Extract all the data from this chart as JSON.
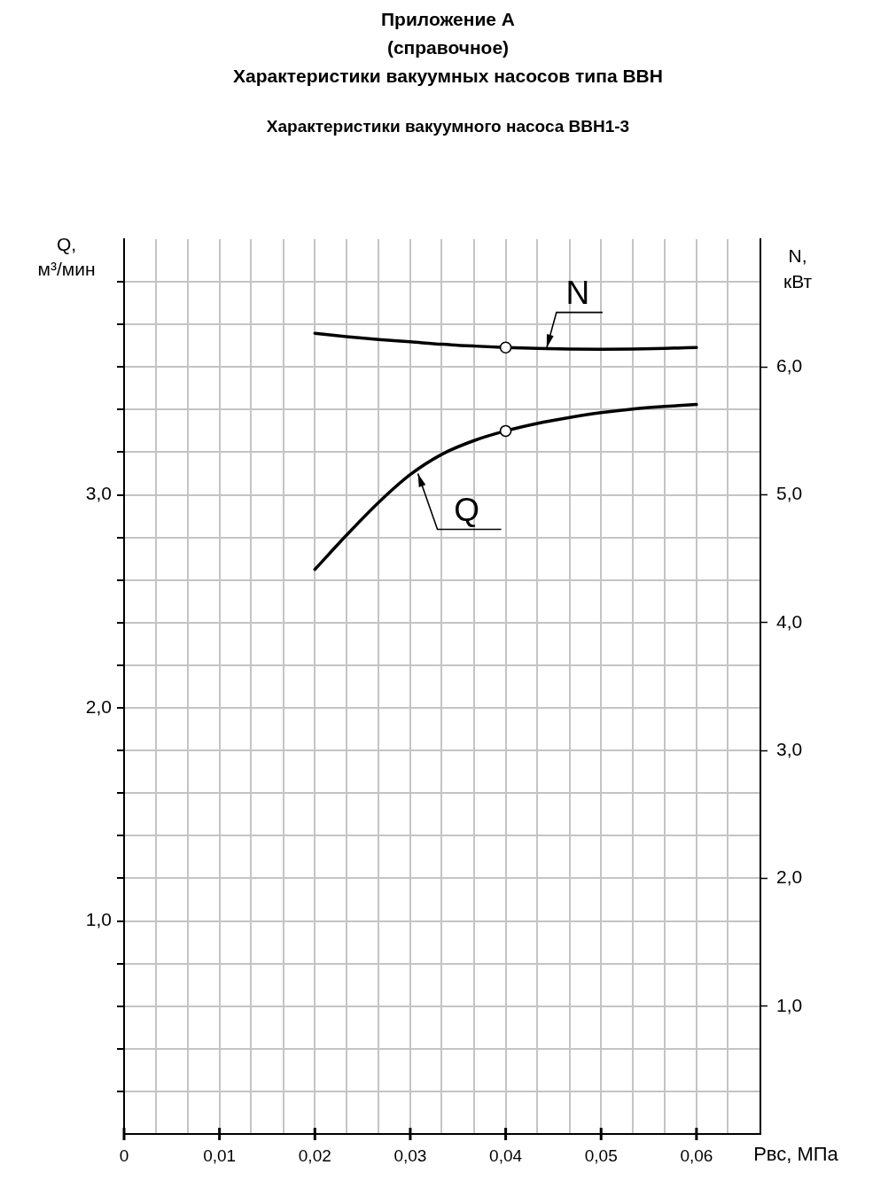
{
  "chart_data": {
    "type": "line",
    "title": "Приложение А\n(справочное)\nХарактеристики вакуумных насосов типа ВВН",
    "subtitle": "Характеристики вакуумного насоса ВВН1-3",
    "xlabel": "Рвс, МПа",
    "ylabel": "Q, м³/мин",
    "y2label": "N, кВт",
    "xlim": [
      0,
      0.0667
    ],
    "xticks": [
      {
        "value": 0,
        "label": "0"
      },
      {
        "value": 0.0033,
        "label": null
      },
      {
        "value": 0.0067,
        "label": null
      },
      {
        "value": 0.01,
        "label": "0,01"
      },
      {
        "value": 0.0133,
        "label": null
      },
      {
        "value": 0.0167,
        "label": null
      },
      {
        "value": 0.02,
        "label": "0,02"
      },
      {
        "value": 0.0233,
        "label": null
      },
      {
        "value": 0.0267,
        "label": null
      },
      {
        "value": 0.03,
        "label": "0,03"
      },
      {
        "value": 0.0333,
        "label": null
      },
      {
        "value": 0.0367,
        "label": null
      },
      {
        "value": 0.04,
        "label": "0,04"
      },
      {
        "value": 0.0433,
        "label": null
      },
      {
        "value": 0.0467,
        "label": null
      },
      {
        "value": 0.05,
        "label": "0,05"
      },
      {
        "value": 0.0533,
        "label": null
      },
      {
        "value": 0.0567,
        "label": null
      },
      {
        "value": 0.06,
        "label": "0,06"
      },
      {
        "value": 0.0633,
        "label": null
      }
    ],
    "ylim": [
      0,
      4.2
    ],
    "yticks": [
      {
        "value": 0.2,
        "label": null
      },
      {
        "value": 0.4,
        "label": null
      },
      {
        "value": 0.6,
        "label": null
      },
      {
        "value": 0.8,
        "label": null
      },
      {
        "value": 1,
        "label": "1,0"
      },
      {
        "value": 1.2,
        "label": null
      },
      {
        "value": 1.4,
        "label": null
      },
      {
        "value": 1.6,
        "label": null
      },
      {
        "value": 1.8,
        "label": null
      },
      {
        "value": 2,
        "label": "2,0"
      },
      {
        "value": 2.2,
        "label": null
      },
      {
        "value": 2.4,
        "label": null
      },
      {
        "value": 2.6,
        "label": null
      },
      {
        "value": 2.8,
        "label": null
      },
      {
        "value": 3,
        "label": "3,0"
      },
      {
        "value": 3.2,
        "label": null
      },
      {
        "value": 3.4,
        "label": null
      },
      {
        "value": 3.6,
        "label": null
      },
      {
        "value": 3.8,
        "label": null
      },
      {
        "value": 4,
        "label": null
      }
    ],
    "y2lim": [
      0,
      7
    ],
    "y2ticks": [
      {
        "value": 1,
        "label": "1,0"
      },
      {
        "value": 2,
        "label": "2,0"
      },
      {
        "value": 3,
        "label": "3,0"
      },
      {
        "value": 4,
        "label": "4,0"
      },
      {
        "value": 5,
        "label": "5,0"
      },
      {
        "value": 6,
        "label": "6,0"
      }
    ],
    "grid": true,
    "marker": "none",
    "line_style": "solid",
    "series": [
      {
        "color": "#000000",
        "x": [
          0.02,
          0.0233,
          0.0267,
          0.03,
          0.0333,
          0.0367,
          0.04,
          0.0433,
          0.0467,
          0.05,
          0.0533,
          0.0567,
          0.06
        ],
        "values": [
          2.65,
          2.81,
          2.965,
          3.095,
          3.19,
          3.255,
          3.3,
          3.335,
          3.363,
          3.386,
          3.403,
          3.415,
          3.424
        ]
      },
      {
        "axis": "y2",
        "color": "#000000",
        "x": [
          0.02,
          0.0233,
          0.0267,
          0.03,
          0.0333,
          0.0367,
          0.04,
          0.0433,
          0.0467,
          0.05,
          0.0533,
          0.0567,
          0.06
        ],
        "values": [
          6.264,
          6.238,
          6.215,
          6.197,
          6.178,
          6.164,
          6.153,
          6.146,
          6.141,
          6.139,
          6.141,
          6.146,
          6.153
        ]
      },
      {
        "type": "scatter",
        "marker": "circle",
        "color": "#000000",
        "x": [
          0.04
        ],
        "values": [
          3.3
        ]
      },
      {
        "type": "scatter",
        "axis": "y2",
        "marker": "circle",
        "color": "#000000",
        "x": [
          0.04
        ],
        "values": [
          6.153
        ]
      }
    ],
    "annotations": [
      {
        "text": "N",
        "x": 0.0443,
        "y": 3.69
      },
      {
        "text": "Q",
        "x": 0.0308,
        "y": 3.1
      }
    ]
  }
}
